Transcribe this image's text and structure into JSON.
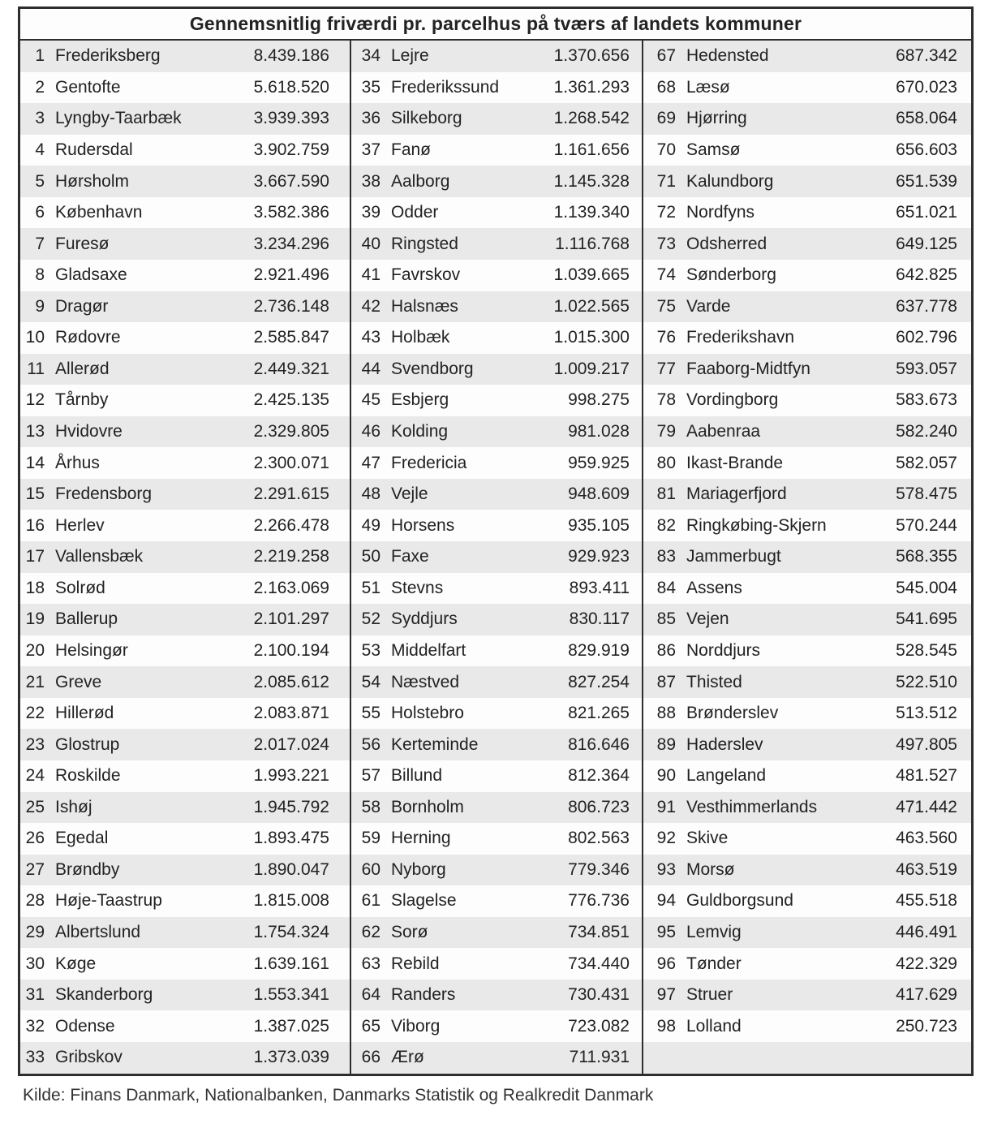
{
  "chart_data": {
    "type": "table",
    "title": "Gennemsnitlig friværdi pr. parcelhus på tværs af landets kommuner",
    "source": "Kilde: Finans Danmark, Nationalbanken, Danmarks Statistik og Realkredit Danmark",
    "layout": {
      "column_count": 3,
      "rows_per_column": [
        33,
        33,
        32
      ],
      "stripe_color": "#e9e9e9",
      "row_color": "#fdfdfd",
      "border_color": "#2e2e2e",
      "text_color": "#222222"
    },
    "columns": [
      {
        "rows": [
          {
            "rank": 1,
            "name": "Frederiksberg",
            "value": "8.439.186"
          },
          {
            "rank": 2,
            "name": "Gentofte",
            "value": "5.618.520"
          },
          {
            "rank": 3,
            "name": "Lyngby-Taarbæk",
            "value": "3.939.393"
          },
          {
            "rank": 4,
            "name": "Rudersdal",
            "value": "3.902.759"
          },
          {
            "rank": 5,
            "name": "Hørsholm",
            "value": "3.667.590"
          },
          {
            "rank": 6,
            "name": "København",
            "value": "3.582.386"
          },
          {
            "rank": 7,
            "name": "Furesø",
            "value": "3.234.296"
          },
          {
            "rank": 8,
            "name": "Gladsaxe",
            "value": "2.921.496"
          },
          {
            "rank": 9,
            "name": "Dragør",
            "value": "2.736.148"
          },
          {
            "rank": 10,
            "name": "Rødovre",
            "value": "2.585.847"
          },
          {
            "rank": 11,
            "name": "Allerød",
            "value": "2.449.321"
          },
          {
            "rank": 12,
            "name": "Tårnby",
            "value": "2.425.135"
          },
          {
            "rank": 13,
            "name": "Hvidovre",
            "value": "2.329.805"
          },
          {
            "rank": 14,
            "name": "Århus",
            "value": "2.300.071"
          },
          {
            "rank": 15,
            "name": "Fredensborg",
            "value": "2.291.615"
          },
          {
            "rank": 16,
            "name": "Herlev",
            "value": "2.266.478"
          },
          {
            "rank": 17,
            "name": "Vallensbæk",
            "value": "2.219.258"
          },
          {
            "rank": 18,
            "name": "Solrød",
            "value": "2.163.069"
          },
          {
            "rank": 19,
            "name": "Ballerup",
            "value": "2.101.297"
          },
          {
            "rank": 20,
            "name": "Helsingør",
            "value": "2.100.194"
          },
          {
            "rank": 21,
            "name": "Greve",
            "value": "2.085.612"
          },
          {
            "rank": 22,
            "name": "Hillerød",
            "value": "2.083.871"
          },
          {
            "rank": 23,
            "name": "Glostrup",
            "value": "2.017.024"
          },
          {
            "rank": 24,
            "name": "Roskilde",
            "value": "1.993.221"
          },
          {
            "rank": 25,
            "name": "Ishøj",
            "value": "1.945.792"
          },
          {
            "rank": 26,
            "name": "Egedal",
            "value": "1.893.475"
          },
          {
            "rank": 27,
            "name": "Brøndby",
            "value": "1.890.047"
          },
          {
            "rank": 28,
            "name": "Høje-Taastrup",
            "value": "1.815.008"
          },
          {
            "rank": 29,
            "name": "Albertslund",
            "value": "1.754.324"
          },
          {
            "rank": 30,
            "name": "Køge",
            "value": "1.639.161"
          },
          {
            "rank": 31,
            "name": "Skanderborg",
            "value": "1.553.341"
          },
          {
            "rank": 32,
            "name": "Odense",
            "value": "1.387.025"
          },
          {
            "rank": 33,
            "name": "Gribskov",
            "value": "1.373.039"
          }
        ]
      },
      {
        "rows": [
          {
            "rank": 34,
            "name": "Lejre",
            "value": "1.370.656"
          },
          {
            "rank": 35,
            "name": "Frederikssund",
            "value": "1.361.293"
          },
          {
            "rank": 36,
            "name": "Silkeborg",
            "value": "1.268.542"
          },
          {
            "rank": 37,
            "name": "Fanø",
            "value": "1.161.656"
          },
          {
            "rank": 38,
            "name": "Aalborg",
            "value": "1.145.328"
          },
          {
            "rank": 39,
            "name": "Odder",
            "value": "1.139.340"
          },
          {
            "rank": 40,
            "name": "Ringsted",
            "value": "1.116.768"
          },
          {
            "rank": 41,
            "name": "Favrskov",
            "value": "1.039.665"
          },
          {
            "rank": 42,
            "name": "Halsnæs",
            "value": "1.022.565"
          },
          {
            "rank": 43,
            "name": "Holbæk",
            "value": "1.015.300"
          },
          {
            "rank": 44,
            "name": "Svendborg",
            "value": "1.009.217"
          },
          {
            "rank": 45,
            "name": "Esbjerg",
            "value": "998.275"
          },
          {
            "rank": 46,
            "name": "Kolding",
            "value": "981.028"
          },
          {
            "rank": 47,
            "name": "Fredericia",
            "value": "959.925"
          },
          {
            "rank": 48,
            "name": "Vejle",
            "value": "948.609"
          },
          {
            "rank": 49,
            "name": "Horsens",
            "value": "935.105"
          },
          {
            "rank": 50,
            "name": "Faxe",
            "value": "929.923"
          },
          {
            "rank": 51,
            "name": "Stevns",
            "value": "893.411"
          },
          {
            "rank": 52,
            "name": "Syddjurs",
            "value": "830.117"
          },
          {
            "rank": 53,
            "name": "Middelfart",
            "value": "829.919"
          },
          {
            "rank": 54,
            "name": "Næstved",
            "value": "827.254"
          },
          {
            "rank": 55,
            "name": "Holstebro",
            "value": "821.265"
          },
          {
            "rank": 56,
            "name": "Kerteminde",
            "value": "816.646"
          },
          {
            "rank": 57,
            "name": "Billund",
            "value": "812.364"
          },
          {
            "rank": 58,
            "name": "Bornholm",
            "value": "806.723"
          },
          {
            "rank": 59,
            "name": "Herning",
            "value": "802.563"
          },
          {
            "rank": 60,
            "name": "Nyborg",
            "value": "779.346"
          },
          {
            "rank": 61,
            "name": "Slagelse",
            "value": "776.736"
          },
          {
            "rank": 62,
            "name": "Sorø",
            "value": "734.851"
          },
          {
            "rank": 63,
            "name": "Rebild",
            "value": "734.440"
          },
          {
            "rank": 64,
            "name": "Randers",
            "value": "730.431"
          },
          {
            "rank": 65,
            "name": "Viborg",
            "value": "723.082"
          },
          {
            "rank": 66,
            "name": "Ærø",
            "value": "711.931"
          }
        ]
      },
      {
        "rows": [
          {
            "rank": 67,
            "name": "Hedensted",
            "value": "687.342"
          },
          {
            "rank": 68,
            "name": "Læsø",
            "value": "670.023"
          },
          {
            "rank": 69,
            "name": "Hjørring",
            "value": "658.064"
          },
          {
            "rank": 70,
            "name": "Samsø",
            "value": "656.603"
          },
          {
            "rank": 71,
            "name": "Kalundborg",
            "value": "651.539"
          },
          {
            "rank": 72,
            "name": "Nordfyns",
            "value": "651.021"
          },
          {
            "rank": 73,
            "name": "Odsherred",
            "value": "649.125"
          },
          {
            "rank": 74,
            "name": "Sønderborg",
            "value": "642.825"
          },
          {
            "rank": 75,
            "name": "Varde",
            "value": "637.778"
          },
          {
            "rank": 76,
            "name": "Frederikshavn",
            "value": "602.796"
          },
          {
            "rank": 77,
            "name": "Faaborg-Midtfyn",
            "value": "593.057"
          },
          {
            "rank": 78,
            "name": "Vordingborg",
            "value": "583.673"
          },
          {
            "rank": 79,
            "name": "Aabenraa",
            "value": "582.240"
          },
          {
            "rank": 80,
            "name": "Ikast-Brande",
            "value": "582.057"
          },
          {
            "rank": 81,
            "name": "Mariagerfjord",
            "value": "578.475"
          },
          {
            "rank": 82,
            "name": "Ringkøbing-Skjern",
            "value": "570.244"
          },
          {
            "rank": 83,
            "name": "Jammerbugt",
            "value": "568.355"
          },
          {
            "rank": 84,
            "name": "Assens",
            "value": "545.004"
          },
          {
            "rank": 85,
            "name": "Vejen",
            "value": "541.695"
          },
          {
            "rank": 86,
            "name": "Norddjurs",
            "value": "528.545"
          },
          {
            "rank": 87,
            "name": "Thisted",
            "value": "522.510"
          },
          {
            "rank": 88,
            "name": "Brønderslev",
            "value": "513.512"
          },
          {
            "rank": 89,
            "name": "Haderslev",
            "value": "497.805"
          },
          {
            "rank": 90,
            "name": "Langeland",
            "value": "481.527"
          },
          {
            "rank": 91,
            "name": "Vesthimmerlands",
            "value": "471.442"
          },
          {
            "rank": 92,
            "name": "Skive",
            "value": "463.560"
          },
          {
            "rank": 93,
            "name": "Morsø",
            "value": "463.519"
          },
          {
            "rank": 94,
            "name": "Guldborgsund",
            "value": "455.518"
          },
          {
            "rank": 95,
            "name": "Lemvig",
            "value": "446.491"
          },
          {
            "rank": 96,
            "name": "Tønder",
            "value": "422.329"
          },
          {
            "rank": 97,
            "name": "Struer",
            "value": "417.629"
          },
          {
            "rank": 98,
            "name": "Lolland",
            "value": "250.723"
          }
        ]
      }
    ]
  }
}
